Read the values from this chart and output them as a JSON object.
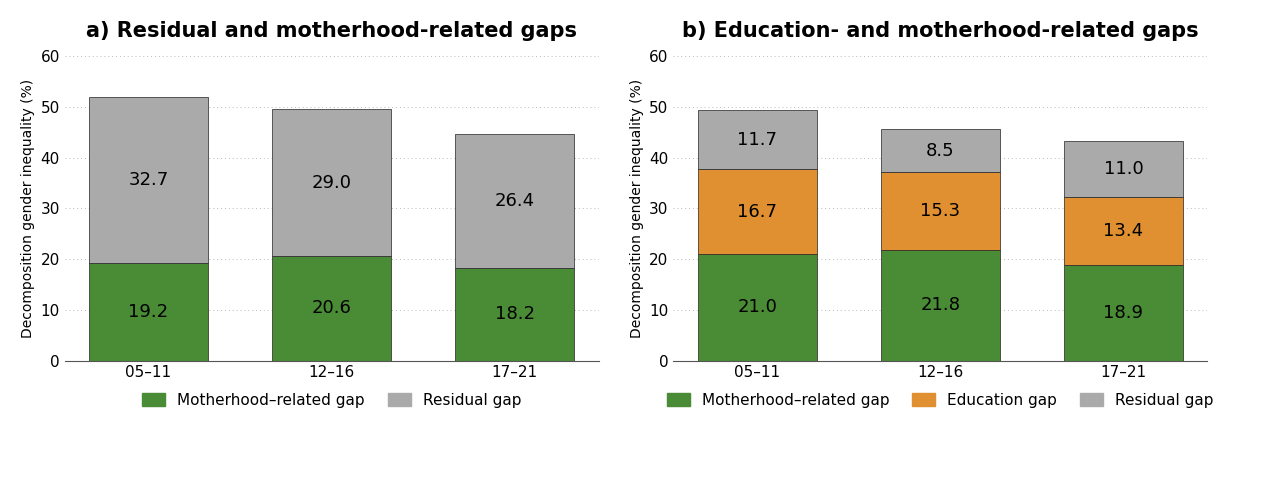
{
  "panel_a": {
    "title": "a) Residual and motherhood-related gaps",
    "categories": [
      "05–11",
      "12–16",
      "17–21"
    ],
    "motherhood": [
      19.2,
      20.6,
      18.2
    ],
    "residual": [
      32.7,
      29.0,
      26.4
    ],
    "colors": {
      "motherhood": "#4a8c35",
      "residual": "#aaaaaa"
    },
    "legend": [
      "Motherhood–related gap",
      "Residual gap"
    ]
  },
  "panel_b": {
    "title": "b) Education- and motherhood-related gaps",
    "categories": [
      "05–11",
      "12–16",
      "17–21"
    ],
    "motherhood": [
      21.0,
      21.8,
      18.9
    ],
    "education": [
      16.7,
      15.3,
      13.4
    ],
    "residual": [
      11.7,
      8.5,
      11.0
    ],
    "colors": {
      "motherhood": "#4a8c35",
      "education": "#e09030",
      "residual": "#aaaaaa"
    },
    "legend": [
      "Motherhood–related gap",
      "Education gap",
      "Residual gap"
    ]
  },
  "ylabel": "Decomposition gender inequality (%)",
  "ylim": [
    0,
    60
  ],
  "yticks": [
    0,
    10,
    20,
    30,
    40,
    50,
    60
  ],
  "bar_width": 0.65,
  "label_fontsize": 13,
  "title_fontsize": 15,
  "tick_fontsize": 11,
  "ylabel_fontsize": 10,
  "legend_fontsize": 11,
  "background_color": "#ffffff",
  "grid_color": "#bbbbbb"
}
